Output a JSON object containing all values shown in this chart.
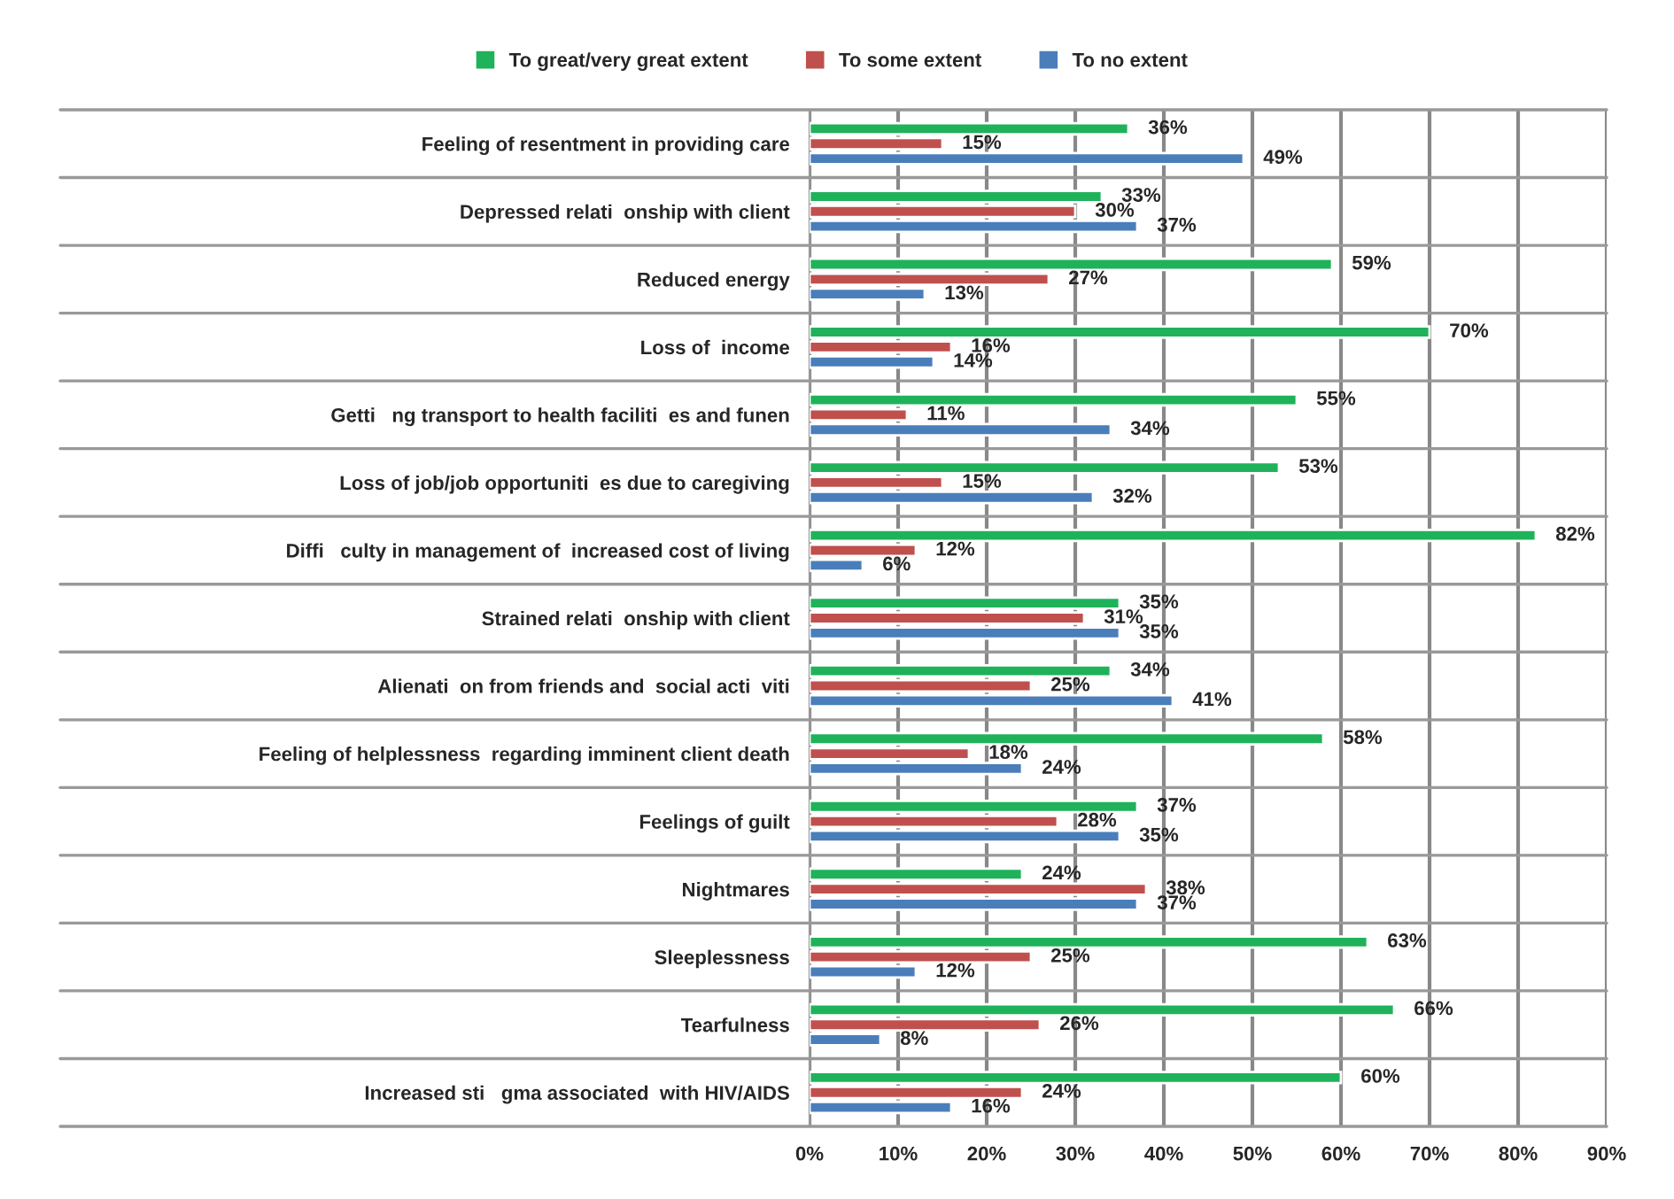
{
  "chart_data": {
    "type": "bar",
    "orientation": "horizontal",
    "categories": [
      "Feeling of resentment in providing care",
      "Depressed relati  onship with client",
      "Reduced energy",
      "Loss of  income",
      "Getti   ng transport to health faciliti  es and funen",
      "Loss of job/job opportuniti  es due to caregiving",
      "Diffi   culty in management of  increased cost of living",
      "Strained relati  onship with client",
      "Alienati  on from friends and  social acti  viti",
      "Feeling of helplessness  regarding imminent client death",
      "Feelings of guilt",
      "Nightmares",
      "Sleeplessness",
      "Tearfulness",
      "Increased sti   gma associated  with HIV/AIDS"
    ],
    "series": [
      {
        "name": "To great/very great extent",
        "color": "#1fb25a",
        "values": [
          36,
          33,
          59,
          70,
          55,
          53,
          82,
          35,
          34,
          58,
          37,
          24,
          63,
          66,
          60
        ],
        "value_labels": [
          "36%",
          "33%",
          "59%",
          "70%",
          "55%",
          "53%",
          "82%",
          "35%",
          "34%",
          "58%",
          "37%",
          "24%",
          "63%",
          "66%",
          "60%"
        ]
      },
      {
        "name": "To some extent",
        "color": "#c0504d",
        "values": [
          15,
          30,
          27,
          16,
          11,
          15,
          12,
          31,
          25,
          18,
          28,
          38,
          25,
          26,
          24
        ],
        "value_labels": [
          "15%",
          "30%",
          "27%",
          "16%",
          "11%",
          "15%",
          "12%",
          "31%",
          "25%",
          "18%",
          "28%",
          "38%",
          "25%",
          "26%",
          "24%"
        ]
      },
      {
        "name": "To no extent",
        "color": "#4a7ebb",
        "values": [
          49,
          37,
          13,
          14,
          34,
          32,
          6,
          35,
          41,
          24,
          35,
          37,
          12,
          8,
          16
        ],
        "value_labels": [
          "49%",
          "37%",
          "13%",
          "14%",
          "34%",
          "32%",
          "6%",
          "35%",
          "41%",
          "24%",
          "35%",
          "37%",
          "12%",
          "8%",
          "16%"
        ]
      }
    ],
    "xlim": [
      0,
      90
    ],
    "xticks": [
      {
        "value": 0,
        "label": "0%"
      },
      {
        "value": 10,
        "label": "10%"
      },
      {
        "value": 20,
        "label": "20%"
      },
      {
        "value": 30,
        "label": "30%"
      },
      {
        "value": 40,
        "label": "40%"
      },
      {
        "value": 50,
        "label": "50%"
      },
      {
        "value": 60,
        "label": "60%"
      },
      {
        "value": 70,
        "label": "70%"
      },
      {
        "value": 80,
        "label": "80%"
      },
      {
        "value": 90,
        "label": "90%"
      }
    ],
    "grid": "x",
    "legend": "top"
  }
}
